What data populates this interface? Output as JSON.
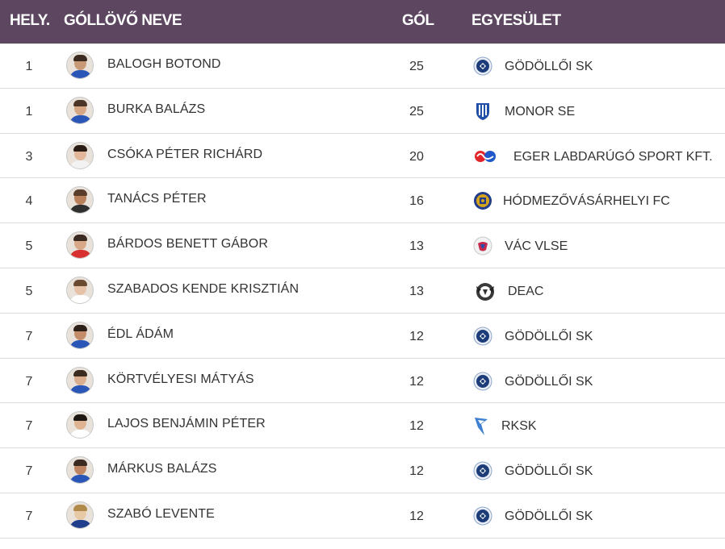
{
  "header": {
    "rank": "HELY.",
    "name": "GÓLLÖVŐ NEVE",
    "goals": "GÓL",
    "club": "EGYESÜLET"
  },
  "rows": [
    {
      "rank": "1",
      "name": "BALOGH BOTOND",
      "goals": "25",
      "club": "GÖDÖLLŐI SK",
      "logo": "godolloi-sk-logo"
    },
    {
      "rank": "1",
      "name": "BURKA BALÁZS",
      "goals": "25",
      "club": "MONOR SE",
      "logo": "monor-se-logo"
    },
    {
      "rank": "3",
      "name": "CSÓKA PÉTER RICHÁRD",
      "goals": "20",
      "club": "EGER LABDARÚGÓ SPORT KFT.",
      "logo": "eger-logo"
    },
    {
      "rank": "4",
      "name": "TANÁCS PÉTER",
      "goals": "16",
      "club": "HÓDMEZŐVÁSÁRHELYI FC",
      "logo": "hodmezovasarhelyi-logo"
    },
    {
      "rank": "5",
      "name": "BÁRDOS BENETT GÁBOR",
      "goals": "13",
      "club": "VÁC VLSE",
      "logo": "vac-vlse-logo"
    },
    {
      "rank": "5",
      "name": "SZABADOS KENDE KRISZTIÁN",
      "goals": "13",
      "club": "DEAC",
      "logo": "deac-logo"
    },
    {
      "rank": "7",
      "name": "ÉDL ÁDÁM",
      "goals": "12",
      "club": "GÖDÖLLŐI SK",
      "logo": "godolloi-sk-logo"
    },
    {
      "rank": "7",
      "name": "KÖRTVÉLYESI MÁTYÁS",
      "goals": "12",
      "club": "GÖDÖLLŐI SK",
      "logo": "godolloi-sk-logo"
    },
    {
      "rank": "7",
      "name": "LAJOS BENJÁMIN PÉTER",
      "goals": "12",
      "club": "RKSK",
      "logo": "rksk-logo"
    },
    {
      "rank": "7",
      "name": "MÁRKUS BALÁZS",
      "goals": "12",
      "club": "GÖDÖLLŐI SK",
      "logo": "godolloi-sk-logo"
    },
    {
      "rank": "7",
      "name": "SZABÓ LEVENTE",
      "goals": "12",
      "club": "GÖDÖLLŐI SK",
      "logo": "godolloi-sk-logo"
    }
  ],
  "colors": {
    "header_bg": "#5c4660",
    "header_text": "#ffffff",
    "row_divider": "#dcdcdc",
    "text": "#333333"
  }
}
